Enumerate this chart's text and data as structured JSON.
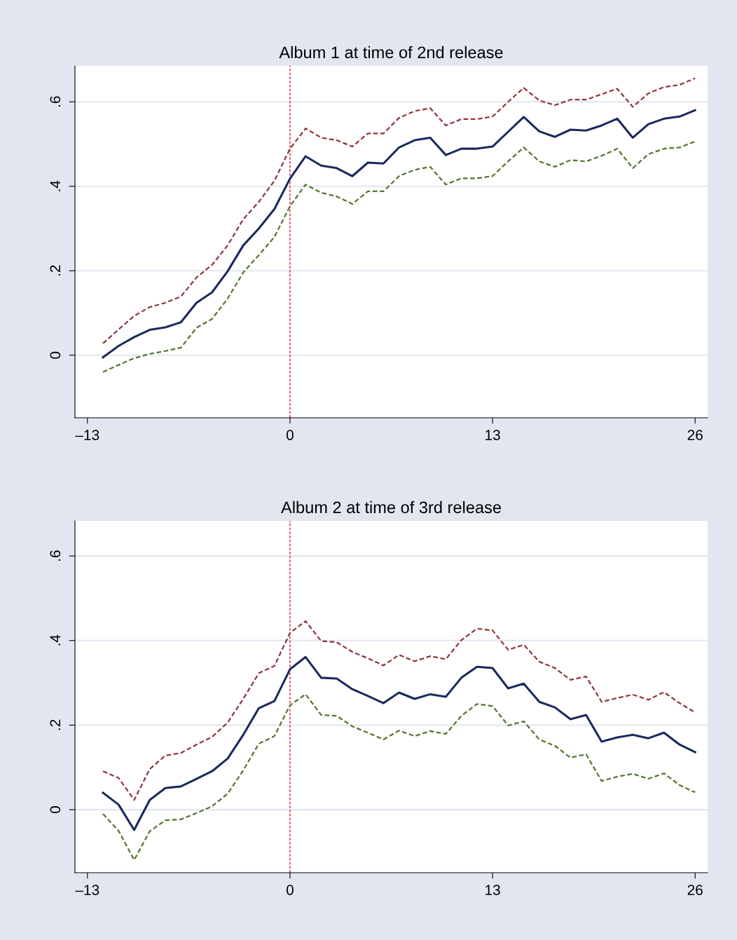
{
  "chart_data": [
    {
      "type": "line",
      "title": "Album 1 at time of 2nd release",
      "x": [
        -12,
        -11,
        -10,
        -9,
        -8,
        -7,
        -6,
        -5,
        -4,
        -3,
        -2,
        -1,
        0,
        1,
        2,
        3,
        4,
        5,
        6,
        7,
        8,
        9,
        10,
        11,
        12,
        13,
        14,
        15,
        16,
        17,
        18,
        19,
        20,
        21,
        22,
        23,
        24,
        25,
        26
      ],
      "series": [
        {
          "color": "#90353b",
          "line_style": "dashed",
          "values": [
            0.028,
            0.061,
            0.093,
            0.114,
            0.124,
            0.139,
            0.184,
            0.214,
            0.26,
            0.322,
            0.363,
            0.413,
            0.489,
            0.537,
            0.515,
            0.509,
            0.494,
            0.525,
            0.525,
            0.562,
            0.578,
            0.585,
            0.544,
            0.559,
            0.559,
            0.565,
            0.6,
            0.633,
            0.603,
            0.592,
            0.605,
            0.605,
            0.618,
            0.631,
            0.588,
            0.62,
            0.635,
            0.64,
            0.656
          ]
        },
        {
          "color": "#55752f",
          "line_style": "dashed",
          "values": [
            -0.04,
            -0.023,
            -0.007,
            0.003,
            0.01,
            0.018,
            0.065,
            0.086,
            0.134,
            0.196,
            0.237,
            0.28,
            0.353,
            0.404,
            0.385,
            0.376,
            0.358,
            0.388,
            0.388,
            0.424,
            0.439,
            0.446,
            0.404,
            0.419,
            0.419,
            0.424,
            0.459,
            0.492,
            0.459,
            0.446,
            0.462,
            0.459,
            0.472,
            0.489,
            0.443,
            0.476,
            0.489,
            0.492,
            0.506
          ]
        },
        {
          "color": "#1a2a5e",
          "line_style": "solid",
          "values": [
            -0.005,
            0.022,
            0.043,
            0.06,
            0.066,
            0.078,
            0.124,
            0.149,
            0.199,
            0.26,
            0.3,
            0.346,
            0.418,
            0.471,
            0.449,
            0.443,
            0.424,
            0.456,
            0.454,
            0.492,
            0.509,
            0.515,
            0.474,
            0.489,
            0.489,
            0.494,
            0.529,
            0.564,
            0.53,
            0.517,
            0.534,
            0.532,
            0.544,
            0.56,
            0.515,
            0.547,
            0.56,
            0.565,
            0.58
          ]
        }
      ],
      "xlim": [
        -13.8,
        26.8
      ],
      "xticks": [
        {
          "value": -13,
          "label": "–13"
        },
        0,
        13,
        26
      ],
      "ylim": [
        -0.148,
        0.685
      ],
      "yticks": [
        0,
        {
          "value": 0.2,
          "label": ".2"
        },
        {
          "value": 0.4,
          "label": ".4"
        },
        {
          "value": 0.6,
          "label": ".6"
        }
      ],
      "grid": "y",
      "ref_lines": [
        {
          "axis": "x",
          "value": 0,
          "color": "#c8102e",
          "line_style": "dashed"
        }
      ]
    },
    {
      "type": "line",
      "title": "Album 2 at time of 3rd release",
      "x": [
        -12,
        -11,
        -10,
        -9,
        -8,
        -7,
        -6,
        -5,
        -4,
        -3,
        -2,
        -1,
        0,
        1,
        2,
        3,
        4,
        5,
        6,
        7,
        8,
        9,
        10,
        11,
        12,
        13,
        14,
        15,
        16,
        17,
        18,
        19,
        20,
        21,
        22,
        23,
        24,
        25,
        26
      ],
      "series": [
        {
          "color": "#90353b",
          "line_style": "dashed",
          "values": [
            0.091,
            0.075,
            0.023,
            0.096,
            0.128,
            0.134,
            0.154,
            0.172,
            0.206,
            0.262,
            0.323,
            0.34,
            0.418,
            0.446,
            0.399,
            0.396,
            0.373,
            0.358,
            0.341,
            0.366,
            0.351,
            0.363,
            0.356,
            0.401,
            0.428,
            0.424,
            0.378,
            0.39,
            0.35,
            0.335,
            0.307,
            0.315,
            0.255,
            0.264,
            0.272,
            0.26,
            0.278,
            0.252,
            0.23
          ]
        },
        {
          "color": "#55752f",
          "line_style": "dashed",
          "values": [
            -0.01,
            -0.05,
            -0.119,
            -0.051,
            -0.025,
            -0.023,
            -0.008,
            0.008,
            0.038,
            0.093,
            0.156,
            0.174,
            0.247,
            0.273,
            0.224,
            0.222,
            0.197,
            0.182,
            0.166,
            0.187,
            0.174,
            0.186,
            0.179,
            0.222,
            0.25,
            0.245,
            0.199,
            0.209,
            0.166,
            0.151,
            0.123,
            0.131,
            0.068,
            0.078,
            0.085,
            0.073,
            0.086,
            0.058,
            0.041
          ]
        },
        {
          "color": "#1a2a5e",
          "line_style": "solid",
          "values": [
            0.04,
            0.012,
            -0.048,
            0.023,
            0.051,
            0.055,
            0.073,
            0.091,
            0.121,
            0.177,
            0.24,
            0.257,
            0.332,
            0.361,
            0.312,
            0.31,
            0.285,
            0.269,
            0.252,
            0.277,
            0.262,
            0.273,
            0.267,
            0.312,
            0.338,
            0.335,
            0.287,
            0.298,
            0.255,
            0.242,
            0.214,
            0.224,
            0.161,
            0.171,
            0.177,
            0.169,
            0.182,
            0.154,
            0.136
          ]
        }
      ],
      "xlim": [
        -13.8,
        26.8
      ],
      "xticks": [
        {
          "value": -13,
          "label": "–13"
        },
        0,
        13,
        26
      ],
      "ylim": [
        -0.149,
        0.683
      ],
      "yticks": [
        0,
        {
          "value": 0.2,
          "label": ".2"
        },
        {
          "value": 0.4,
          "label": ".4"
        },
        {
          "value": 0.6,
          "label": ".6"
        }
      ],
      "grid": "y",
      "ref_lines": [
        {
          "axis": "x",
          "value": 0,
          "color": "#c8102e",
          "line_style": "dashed"
        }
      ]
    }
  ]
}
